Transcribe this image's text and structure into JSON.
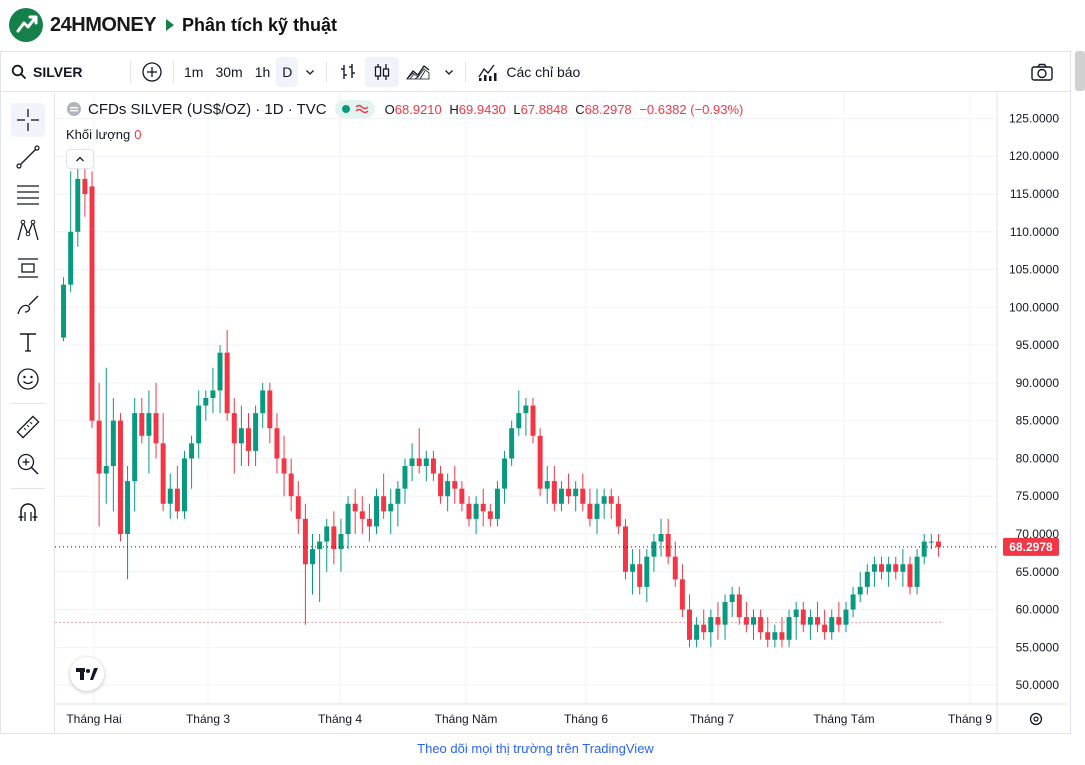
{
  "site": {
    "brand": "24HMONEY",
    "page_title": "Phân tích kỹ thuật",
    "logo_color": "#16804a"
  },
  "toolbar": {
    "symbol": "SILVER",
    "intervals": [
      "1m",
      "30m",
      "1h",
      "D"
    ],
    "active_interval": "D",
    "indicators_label": "Các chỉ báo"
  },
  "legend": {
    "symbol_name": "CFDs SILVER (US$/OZ) · 1D · TVC",
    "o_label": "O",
    "o_value": "68.9210",
    "h_label": "H",
    "h_value": "69.9430",
    "l_label": "L",
    "l_value": "67.8848",
    "c_label": "C",
    "c_value": "68.2978",
    "change": "−0.6382 (−0.93%)",
    "volume_label": "Khối lượng",
    "volume_value": "0"
  },
  "footer": {
    "link_text": "Theo dõi mọi thị trường trên TradingView"
  },
  "colors": {
    "up": "#089981",
    "down": "#f23645",
    "grid": "#f0f3fa",
    "accent": "#2962ff"
  },
  "chart_data": {
    "type": "candlestick",
    "title": "",
    "ylim": [
      47.5,
      128.5
    ],
    "y_ticks": [
      "125.0000",
      "120.0000",
      "115.0000",
      "110.0000",
      "105.0000",
      "100.0000",
      "95.0000",
      "90.0000",
      "85.0000",
      "80.0000",
      "75.0000",
      "70.0000",
      "65.0000",
      "60.0000",
      "55.0000",
      "50.0000"
    ],
    "x_labels": [
      "Tháng Hai",
      "Tháng 3",
      "Tháng 4",
      "Tháng Năm",
      "Tháng 6",
      "Tháng 7",
      "Tháng Tám",
      "Tháng 9"
    ],
    "last_price_label": "68.2978",
    "last_price": 68.2978,
    "reference_price": 58.3,
    "grid": true,
    "candles": [
      [
        96,
        104,
        95.5,
        103
      ],
      [
        103,
        118,
        102,
        110
      ],
      [
        110,
        120,
        108,
        117
      ],
      [
        117,
        121,
        112,
        115
      ],
      [
        116,
        118,
        84,
        85
      ],
      [
        85,
        90,
        71,
        78
      ],
      [
        78,
        92,
        74,
        79
      ],
      [
        79,
        88,
        73,
        85
      ],
      [
        85,
        86,
        69,
        70
      ],
      [
        70,
        79,
        64,
        77
      ],
      [
        77,
        88,
        73,
        86
      ],
      [
        86,
        88,
        82,
        83
      ],
      [
        83,
        89,
        78,
        86
      ],
      [
        86,
        90,
        80,
        82
      ],
      [
        82,
        86,
        73,
        74
      ],
      [
        74,
        78,
        72,
        76
      ],
      [
        76,
        79,
        72,
        73
      ],
      [
        73,
        81,
        72,
        80
      ],
      [
        80,
        83,
        76,
        82
      ],
      [
        82,
        89,
        80,
        87
      ],
      [
        87,
        89,
        85,
        88
      ],
      [
        88,
        92,
        86,
        89
      ],
      [
        89,
        95,
        86,
        94
      ],
      [
        94,
        97,
        85,
        86
      ],
      [
        86,
        88,
        78,
        82
      ],
      [
        82,
        87,
        79,
        84
      ],
      [
        84,
        86,
        79,
        81
      ],
      [
        81,
        87,
        79,
        86
      ],
      [
        86,
        90,
        84,
        89
      ],
      [
        89,
        90,
        82,
        84
      ],
      [
        84,
        86,
        78,
        80
      ],
      [
        80,
        83,
        75,
        78
      ],
      [
        78,
        80,
        73,
        75
      ],
      [
        75,
        77,
        70,
        72
      ],
      [
        72,
        74,
        58,
        66
      ],
      [
        66,
        70,
        62,
        68
      ],
      [
        68,
        70,
        61,
        69
      ],
      [
        69,
        72,
        65,
        71
      ],
      [
        71,
        73,
        66,
        68
      ],
      [
        68,
        72,
        65,
        70
      ],
      [
        70,
        75,
        68,
        74
      ],
      [
        74,
        76,
        70,
        73
      ],
      [
        73,
        75,
        70,
        72
      ],
      [
        72,
        74,
        69,
        71
      ],
      [
        71,
        76,
        70,
        75
      ],
      [
        75,
        78,
        72,
        73
      ],
      [
        73,
        76,
        70,
        74
      ],
      [
        74,
        77,
        71,
        76
      ],
      [
        76,
        80,
        74,
        79
      ],
      [
        79,
        82,
        77,
        80
      ],
      [
        80,
        84,
        78,
        79
      ],
      [
        79,
        81,
        77,
        80
      ],
      [
        80,
        81,
        77,
        78
      ],
      [
        78,
        79,
        74,
        75
      ],
      [
        75,
        78,
        73,
        77
      ],
      [
        77,
        79,
        74,
        76
      ],
      [
        76,
        77,
        73,
        74
      ],
      [
        74,
        75,
        71,
        72
      ],
      [
        72,
        75,
        70,
        74
      ],
      [
        74,
        76,
        71,
        73
      ],
      [
        73,
        74,
        71,
        72
      ],
      [
        72,
        77,
        71,
        76
      ],
      [
        76,
        81,
        74,
        80
      ],
      [
        80,
        85,
        79,
        84
      ],
      [
        84,
        89,
        83,
        86
      ],
      [
        86,
        88,
        83,
        87
      ],
      [
        87,
        88,
        82,
        83
      ],
      [
        83,
        84,
        75,
        76
      ],
      [
        76,
        79,
        74,
        77
      ],
      [
        77,
        79,
        73,
        74
      ],
      [
        74,
        77,
        73,
        76
      ],
      [
        76,
        78,
        74,
        75
      ],
      [
        75,
        77,
        73,
        76
      ],
      [
        76,
        78,
        73,
        74
      ],
      [
        74,
        76,
        71,
        72
      ],
      [
        72,
        76,
        70,
        74
      ],
      [
        74,
        76,
        72,
        75
      ],
      [
        75,
        76,
        72,
        74
      ],
      [
        74,
        75,
        70,
        71
      ],
      [
        71,
        72,
        64,
        65
      ],
      [
        65,
        68,
        62,
        66
      ],
      [
        66,
        68,
        62,
        63
      ],
      [
        63,
        68,
        61,
        67
      ],
      [
        67,
        70,
        65,
        69
      ],
      [
        69,
        72,
        67,
        70
      ],
      [
        70,
        72,
        66,
        67
      ],
      [
        67,
        69,
        63,
        64
      ],
      [
        64,
        66,
        59,
        60
      ],
      [
        60,
        62,
        55,
        56
      ],
      [
        56,
        59,
        55,
        58
      ],
      [
        58,
        60,
        56,
        57
      ],
      [
        57,
        60,
        55,
        59
      ],
      [
        59,
        61,
        56,
        58
      ],
      [
        58,
        62,
        56,
        61
      ],
      [
        61,
        63,
        59,
        62
      ],
      [
        62,
        63,
        58,
        59
      ],
      [
        59,
        61,
        57,
        58
      ],
      [
        58,
        60,
        56,
        59
      ],
      [
        59,
        60,
        56,
        57
      ],
      [
        57,
        59,
        55,
        56
      ],
      [
        56,
        58,
        55,
        57
      ],
      [
        57,
        59,
        55,
        56
      ],
      [
        56,
        60,
        55,
        59
      ],
      [
        59,
        61,
        56,
        60
      ],
      [
        60,
        61,
        57,
        58
      ],
      [
        58,
        60,
        56,
        59
      ],
      [
        59,
        61,
        57,
        58
      ],
      [
        58,
        60,
        56,
        57
      ],
      [
        57,
        60,
        56,
        59
      ],
      [
        59,
        61,
        57,
        58
      ],
      [
        58,
        61,
        57,
        60
      ],
      [
        60,
        63,
        59,
        62
      ],
      [
        62,
        65,
        61,
        63
      ],
      [
        63,
        66,
        62,
        65
      ],
      [
        65,
        67,
        63,
        66
      ],
      [
        66,
        67,
        64,
        65
      ],
      [
        65,
        67,
        63,
        66
      ],
      [
        66,
        67,
        64,
        65
      ],
      [
        65,
        68,
        63,
        66
      ],
      [
        66,
        67,
        62,
        63
      ],
      [
        63,
        68,
        62,
        67
      ],
      [
        67,
        70,
        66,
        69
      ],
      [
        69,
        70,
        68,
        69
      ],
      [
        69,
        70,
        67,
        68.3
      ]
    ]
  }
}
